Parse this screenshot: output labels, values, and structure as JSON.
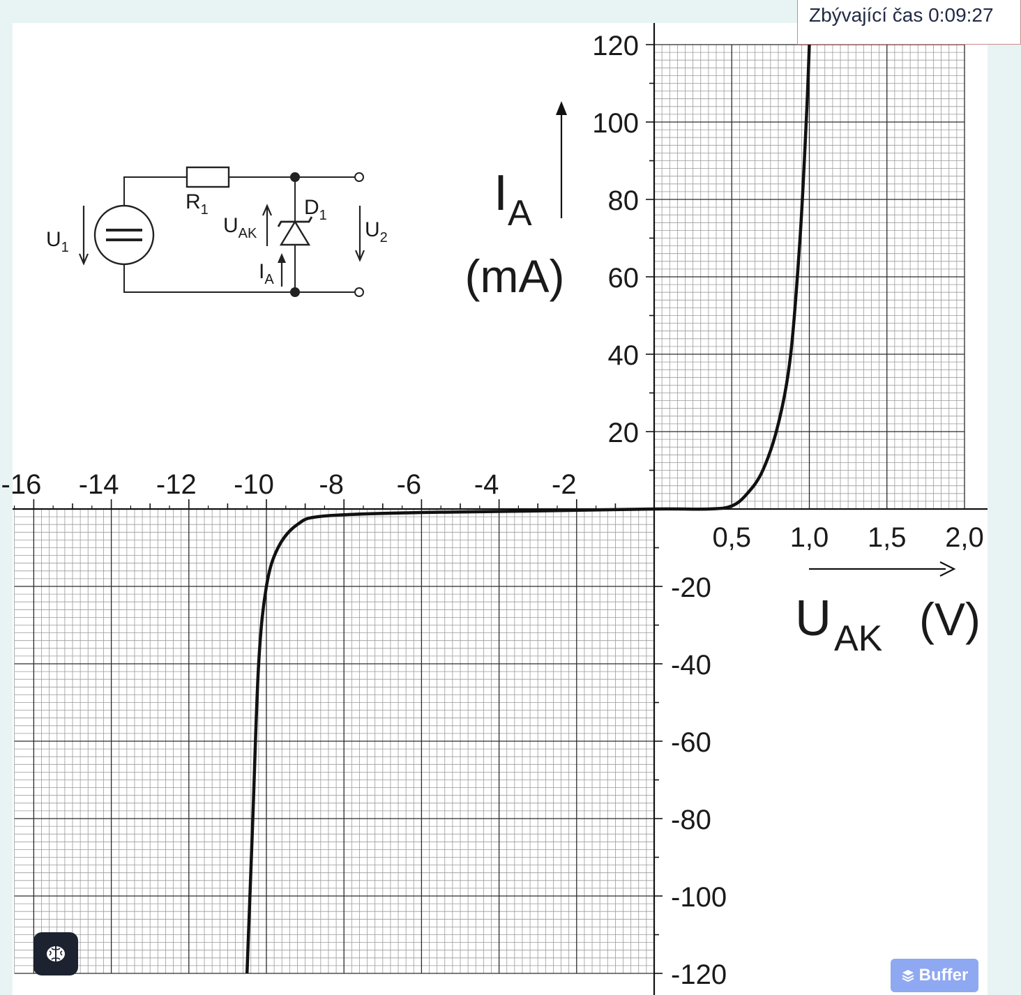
{
  "timer": {
    "text": "Zbývající čas 0:09:27"
  },
  "buttons": {
    "brain_icon": "brain-icon",
    "buffer_label": "Buffer",
    "buffer_icon": "stack-layers-icon"
  },
  "circuit": {
    "labels": {
      "u1": "U",
      "u1_sub": "1",
      "r1": "R",
      "r1_sub": "1",
      "d1": "D",
      "d1_sub": "1",
      "uak": "U",
      "uak_sub": "AK",
      "ia": "I",
      "ia_sub": "A",
      "u2": "U",
      "u2_sub": "2"
    }
  },
  "chart_data": {
    "type": "line",
    "xlabel_main": "U",
    "xlabel_sub": "AK",
    "xlabel_unit": "(V)",
    "ylabel_main": "I",
    "ylabel_sub": "A",
    "ylabel_unit": "(mA)",
    "x_ticks_negative": [
      "-16",
      "-14",
      "-12",
      "-10",
      "-8",
      "-6",
      "-4",
      "-2"
    ],
    "x_ticks_positive": [
      "0,5",
      "1,0",
      "1,5",
      "2,0"
    ],
    "y_ticks": [
      "120",
      "100",
      "80",
      "60",
      "40",
      "20",
      "-20",
      "-40",
      "-60",
      "-80",
      "-100",
      "-120"
    ],
    "x_axis_note": "negative voltage scale -16..0 V, positive scale 0..2,0 V",
    "ylim": [
      -120,
      120
    ],
    "grid": true,
    "series": [
      {
        "points_negative_side": [
          [
            -10.5,
            -120
          ],
          [
            -10.35,
            -80
          ],
          [
            -10.2,
            -40
          ],
          [
            -10.0,
            -20
          ],
          [
            -9.7,
            -10
          ],
          [
            -9.2,
            -4
          ],
          [
            -8.5,
            -1.8
          ],
          [
            -6,
            -0.9
          ],
          [
            -3,
            -0.5
          ],
          [
            0,
            0
          ]
        ],
        "points_positive_side": [
          [
            0,
            0
          ],
          [
            0.35,
            0
          ],
          [
            0.5,
            0.8
          ],
          [
            0.6,
            4
          ],
          [
            0.7,
            10
          ],
          [
            0.8,
            22
          ],
          [
            0.88,
            40
          ],
          [
            0.94,
            70
          ],
          [
            0.98,
            100
          ],
          [
            1.0,
            120
          ]
        ]
      }
    ]
  }
}
